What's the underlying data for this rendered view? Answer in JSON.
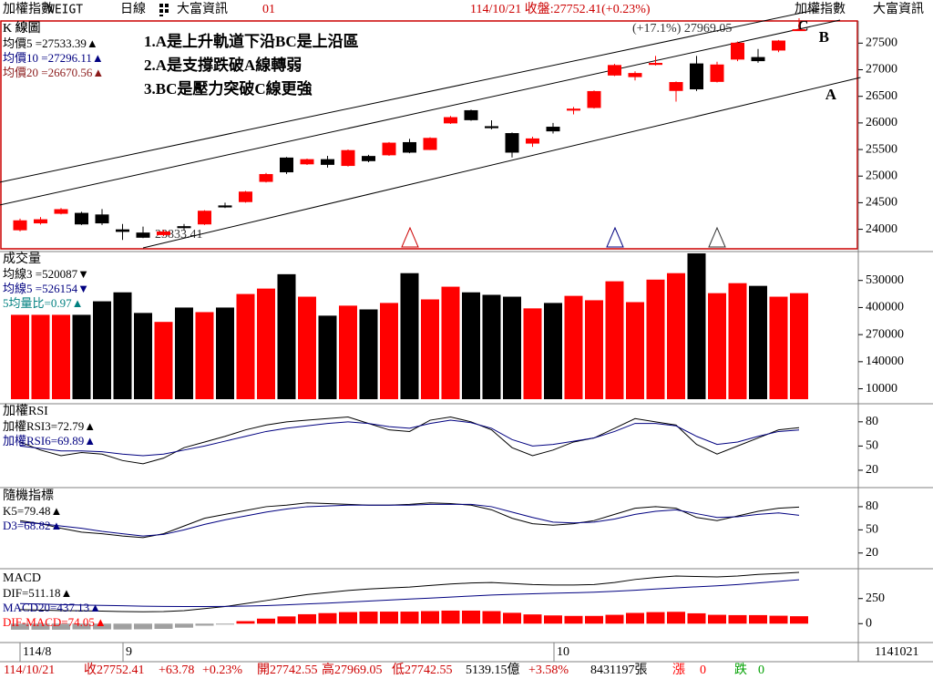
{
  "header": {
    "left": [
      "加權指數",
      "WEIGT",
      "日線"
    ],
    "vendor": "大富資訊",
    "code": "01",
    "quote": "114/10/21 收盤:27752.41(+0.23%)",
    "right_name": "加權指數",
    "right_vendor": "大富資訊"
  },
  "chart_data": [
    {
      "type": "candlestick",
      "title": "K 線圖",
      "legend": [
        {
          "label": "均價5 =27533.39▲",
          "color": "#000000"
        },
        {
          "label": "均價10 =27296.11▲",
          "color": "#000080"
        },
        {
          "label": "均價20 =26670.56▲",
          "color": "#8b1a1a"
        }
      ],
      "annotations": [
        "1.A是上升軌道下沿BC是上沿區",
        "2.A是支撐跌破A線轉弱",
        "3.BC是壓力突破C線更強"
      ],
      "high_label": "(+17.1%) 27969.05",
      "low_label": "23833.41",
      "trendlines": [
        {
          "label": "C",
          "x": [
            -1,
            39
          ],
          "y": [
            24884,
            28140
          ]
        },
        {
          "label": "B",
          "x": [
            -1,
            40
          ],
          "y": [
            24455,
            27934
          ]
        },
        {
          "label": "A",
          "x": [
            6,
            41
          ],
          "y": [
            23650,
            26855
          ]
        }
      ],
      "up_color": "#ff0000",
      "down_color": "#000000",
      "open": [
        23990,
        24120,
        24300,
        24300,
        24270,
        23990,
        23930,
        23900,
        24050,
        24100,
        24440,
        24520,
        24900,
        25340,
        25230,
        25310,
        25200,
        25370,
        25400,
        25630,
        25500,
        26000,
        26230,
        25930,
        25800,
        25620,
        25920,
        26240,
        26290,
        26900,
        26870,
        27100,
        26610,
        27110,
        26780,
        27200,
        27230,
        27370,
        27742.55
      ],
      "high": [
        24200,
        24230,
        24400,
        24330,
        24380,
        24100,
        24050,
        23990,
        24100,
        24360,
        24500,
        24720,
        25060,
        25360,
        25330,
        25380,
        25500,
        25400,
        25640,
        25700,
        25730,
        26130,
        26250,
        26050,
        25820,
        25740,
        26000,
        26300,
        26610,
        27110,
        26970,
        27260,
        26780,
        27260,
        27150,
        27530,
        27390,
        27560,
        27969.05
      ],
      "low": [
        23960,
        24090,
        24280,
        24080,
        24080,
        23800,
        23833.41,
        23870,
        23980,
        24080,
        24400,
        24500,
        24880,
        25040,
        25210,
        25160,
        25180,
        25260,
        25380,
        25430,
        25490,
        25980,
        26040,
        25880,
        25350,
        25550,
        25800,
        26160,
        26270,
        26880,
        26800,
        27080,
        26400,
        26600,
        26760,
        27160,
        27130,
        27330,
        27742.55
      ],
      "close": [
        24160,
        24180,
        24370,
        24100,
        24120,
        23960,
        23850,
        23950,
        24030,
        24340,
        24420,
        24700,
        25030,
        25080,
        25310,
        25220,
        25480,
        25290,
        25620,
        25450,
        25710,
        26100,
        26060,
        25910,
        25450,
        25700,
        25850,
        26260,
        26590,
        27080,
        26930,
        27120,
        26760,
        26640,
        27090,
        27500,
        27170,
        27540,
        27752.41
      ],
      "ylim": [
        23650,
        27900
      ],
      "yticks": [
        24000,
        24500,
        25000,
        25500,
        26000,
        26500,
        27000,
        27500
      ]
    },
    {
      "type": "bar",
      "title": "成交量",
      "legend": [
        {
          "label": "均線3 =520087▼",
          "color": "#000000"
        },
        {
          "label": "均線5 =526154▼",
          "color": "#000080"
        },
        {
          "label": "5均量比=0.97▲",
          "color": "#008080"
        }
      ],
      "values": [
        365000,
        365000,
        365000,
        365000,
        430000,
        473000,
        374000,
        331000,
        400000,
        378000,
        400000,
        465000,
        491000,
        560000,
        452000,
        361000,
        409000,
        391000,
        422000,
        565000,
        439000,
        500000,
        473000,
        461000,
        452000,
        396000,
        422000,
        456000,
        435000,
        526000,
        426000,
        534000,
        565000,
        660000,
        469000,
        517000,
        504000,
        452000,
        469000
      ],
      "ylim": [
        -40000,
        660000
      ],
      "yticks": [
        10000,
        140000,
        270000,
        400000,
        530000
      ]
    },
    {
      "type": "line",
      "title": "加權RSI",
      "series": [
        {
          "label": "加權RSI3=72.79▲",
          "color": "#000000",
          "values": [
            55,
            45,
            38,
            42,
            40,
            32,
            28,
            35,
            48,
            55,
            62,
            70,
            76,
            80,
            82,
            84,
            86,
            78,
            70,
            68,
            82,
            86,
            80,
            70,
            48,
            38,
            45,
            55,
            60,
            72,
            84,
            80,
            76,
            52,
            40,
            50,
            60,
            70,
            72.79
          ]
        },
        {
          "label": "加權RSI6=69.89▲",
          "color": "#000080",
          "values": [
            50,
            47,
            44,
            44,
            43,
            40,
            38,
            40,
            45,
            50,
            56,
            62,
            68,
            72,
            75,
            78,
            80,
            78,
            74,
            72,
            78,
            82,
            79,
            72,
            58,
            50,
            52,
            56,
            60,
            68,
            78,
            78,
            75,
            62,
            52,
            55,
            62,
            68,
            69.89
          ]
        }
      ],
      "ylim": [
        3,
        99
      ],
      "yticks": [
        20,
        50,
        80
      ]
    },
    {
      "type": "line",
      "title": "隨機指標",
      "series": [
        {
          "label": "K5=79.48▲",
          "color": "#000000",
          "values": [
            62,
            58,
            52,
            47,
            45,
            42,
            40,
            45,
            55,
            65,
            70,
            75,
            80,
            82,
            85,
            84,
            83,
            82,
            82,
            83,
            85,
            84,
            82,
            76,
            65,
            58,
            56,
            58,
            62,
            70,
            78,
            80,
            78,
            66,
            62,
            68,
            74,
            78,
            79.48
          ]
        },
        {
          "label": "D3=68.82▲",
          "color": "#000080",
          "values": [
            60,
            58,
            55,
            52,
            48,
            45,
            42,
            44,
            50,
            57,
            63,
            68,
            73,
            77,
            80,
            81,
            82,
            82,
            82,
            82,
            83,
            83,
            83,
            80,
            73,
            66,
            60,
            59,
            60,
            64,
            70,
            74,
            76,
            71,
            66,
            67,
            70,
            72,
            68.82
          ]
        }
      ],
      "ylim": [
        2,
        100
      ],
      "yticks": [
        20,
        50,
        80
      ]
    },
    {
      "type": "macd",
      "title": "MACD",
      "series": [
        {
          "label": "DIF=511.18▲",
          "color": "#000000",
          "values": [
            140,
            135,
            130,
            128,
            125,
            120,
            118,
            120,
            130,
            150,
            170,
            200,
            230,
            260,
            290,
            310,
            330,
            345,
            355,
            365,
            380,
            395,
            405,
            410,
            400,
            390,
            385,
            385,
            390,
            410,
            440,
            460,
            475,
            470,
            465,
            475,
            490,
            500,
            511.18
          ]
        },
        {
          "label": "MACD20=437.13▲",
          "color": "#000080",
          "values": [
            200,
            195,
            190,
            185,
            182,
            178,
            174,
            172,
            170,
            170,
            172,
            175,
            180,
            188,
            196,
            205,
            215,
            225,
            235,
            245,
            255,
            265,
            275,
            285,
            292,
            298,
            303,
            308,
            313,
            322,
            333,
            345,
            357,
            367,
            377,
            390,
            405,
            421,
            437.13
          ]
        }
      ],
      "histogram": {
        "label": "DIF-MACD=74.05▲",
        "pos_color": "#ff0000",
        "neg_color": "#a0a0a0",
        "values": [
          -60,
          -60,
          -60,
          -57,
          -57,
          -58,
          -56,
          -52,
          -40,
          -20,
          -2,
          25,
          50,
          72,
          94,
          105,
          115,
          120,
          120,
          120,
          125,
          130,
          130,
          125,
          108,
          92,
          82,
          77,
          77,
          88,
          107,
          115,
          118,
          103,
          88,
          85,
          85,
          79,
          74.05
        ]
      },
      "ylim": [
        -170,
        520
      ],
      "yticks": [
        0,
        250
      ]
    }
  ],
  "dates": [
    "114/8",
    "9",
    "10",
    "1141021"
  ],
  "footer": [
    {
      "text": "114/10/21",
      "color": "#cc0000"
    },
    {
      "text": "收27752.41",
      "color": "#cc0000"
    },
    {
      "text": "+63.78",
      "color": "#cc0000"
    },
    {
      "text": "+0.23%",
      "color": "#cc0000"
    },
    {
      "text": "開27742.55",
      "color": "#cc0000"
    },
    {
      "text": "高27969.05",
      "color": "#cc0000"
    },
    {
      "text": "低27742.55",
      "color": "#cc0000"
    },
    {
      "text": "5139.15億",
      "color": "#000000"
    },
    {
      "text": "+3.58%",
      "color": "#cc0000"
    },
    {
      "text": "8431197張",
      "color": "#000000"
    },
    {
      "text": "漲",
      "color": "#ff0000"
    },
    {
      "text": "0",
      "color": "#ff0000"
    },
    {
      "text": "跌",
      "color": "#00a000"
    },
    {
      "text": "0",
      "color": "#00a000"
    }
  ]
}
